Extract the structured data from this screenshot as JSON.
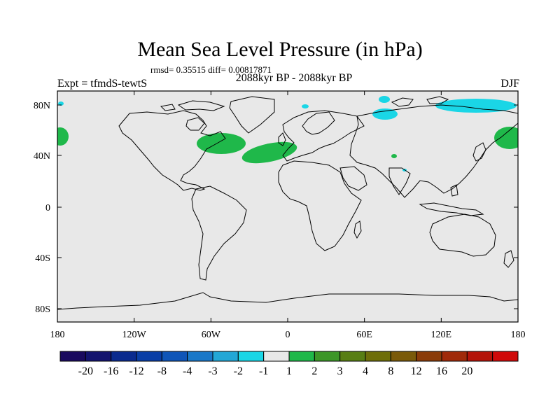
{
  "title": "Mean Sea Level Pressure (in hPa)",
  "stats": "rmsd= 0.35515 diff= 0.00817871",
  "period": "2088kyr BP - 2088kyr BP",
  "experiment": "Expt = tfmdS-tewtS",
  "season": "DJF",
  "lat_ticks": [
    "80N",
    "40N",
    "0",
    "40S",
    "80S"
  ],
  "lon_ticks": [
    "180",
    "120W",
    "60W",
    "0",
    "60E",
    "120E",
    "180"
  ],
  "colorbar": {
    "colors": [
      "#1a0a5e",
      "#14146e",
      "#0a2a8e",
      "#0a3ea6",
      "#0f55b8",
      "#1a78c8",
      "#23a7d6",
      "#1ad6e6",
      "#e8e8e8",
      "#1fb84a",
      "#3c9628",
      "#587e14",
      "#6e6e0a",
      "#7a5a0a",
      "#8a3c0a",
      "#a02a0a",
      "#b4140a",
      "#d00a0a"
    ],
    "labels": [
      "-20",
      "-16",
      "-12",
      "-8",
      "-4",
      "-3",
      "-2",
      "-1",
      "1",
      "2",
      "3",
      "4",
      "8",
      "12",
      "16",
      "20"
    ]
  },
  "colors": {
    "background": "#e8e8e8",
    "positive": "#1fb84a",
    "negative": "#1ad6e6",
    "coast": "#000000"
  }
}
